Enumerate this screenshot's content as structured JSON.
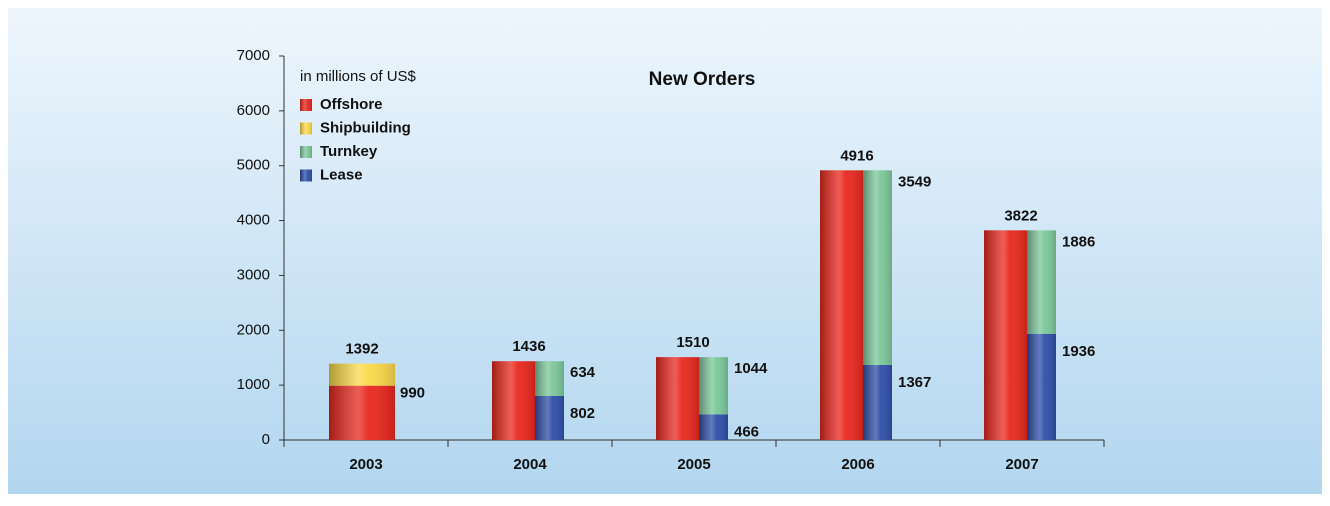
{
  "chart_data": {
    "type": "bar",
    "title": "New Orders",
    "subtitle": "in millions of US$",
    "categories": [
      "2003",
      "2004",
      "2005",
      "2006",
      "2007"
    ],
    "series": [
      {
        "name": "Offshore",
        "color": "#e8281e",
        "values": [
          990,
          1436,
          1510,
          4916,
          3822
        ]
      },
      {
        "name": "Shipbuilding",
        "color": "#fbd94a",
        "values": [
          402,
          null,
          null,
          null,
          null
        ]
      },
      {
        "name": "Turnkey",
        "color": "#7cc79a",
        "values": [
          null,
          634,
          1044,
          3549,
          1886
        ]
      },
      {
        "name": "Lease",
        "color": "#2f4fa8",
        "values": [
          null,
          802,
          466,
          1367,
          1936
        ]
      }
    ],
    "totals": [
      1392,
      null,
      null,
      null,
      null
    ],
    "ylim": [
      0,
      7000
    ],
    "yticks": [
      0,
      1000,
      2000,
      3000,
      4000,
      5000,
      6000,
      7000
    ],
    "legend": "top-left"
  }
}
